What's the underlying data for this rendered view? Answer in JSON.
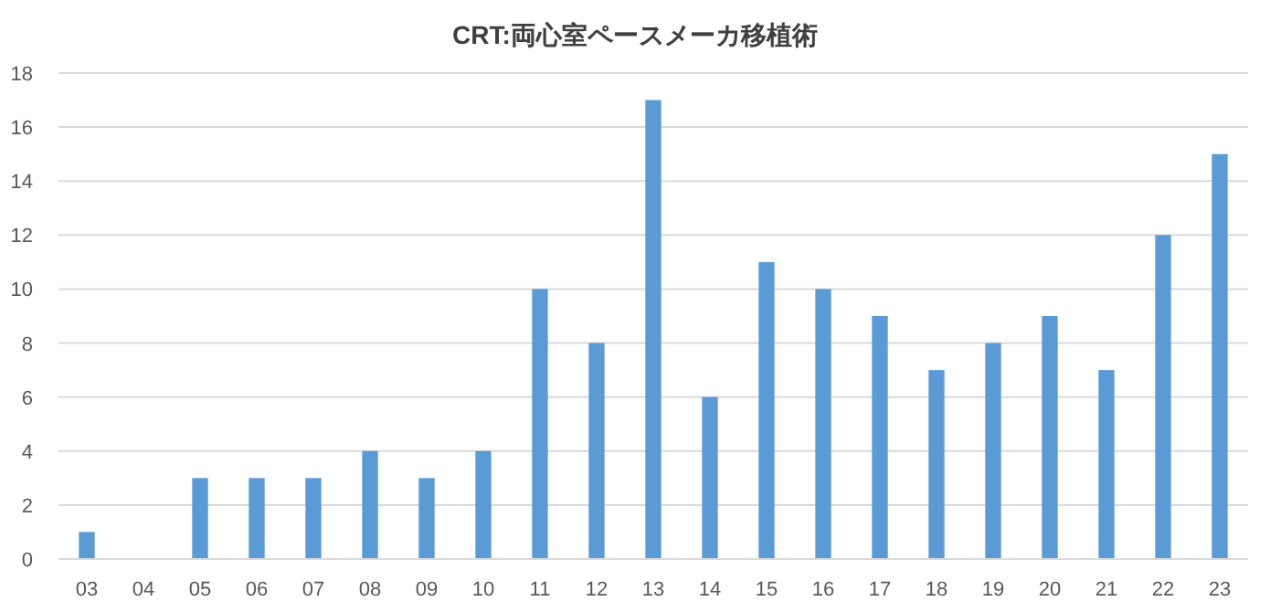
{
  "chart_data": {
    "type": "bar",
    "title": "CRT:両心室ペースメーカ移植術",
    "categories": [
      "03",
      "04",
      "05",
      "06",
      "07",
      "08",
      "09",
      "10",
      "11",
      "12",
      "13",
      "14",
      "15",
      "16",
      "17",
      "18",
      "19",
      "20",
      "21",
      "22",
      "23"
    ],
    "values": [
      1,
      0,
      3,
      3,
      3,
      4,
      3,
      4,
      10,
      8,
      17,
      6,
      11,
      10,
      9,
      7,
      8,
      9,
      7,
      12,
      15
    ],
    "color": "#5b9bd5",
    "ylim": [
      0,
      18
    ],
    "yticks": [
      0,
      2,
      4,
      6,
      8,
      10,
      12,
      14,
      16,
      18
    ],
    "grid": "y"
  }
}
